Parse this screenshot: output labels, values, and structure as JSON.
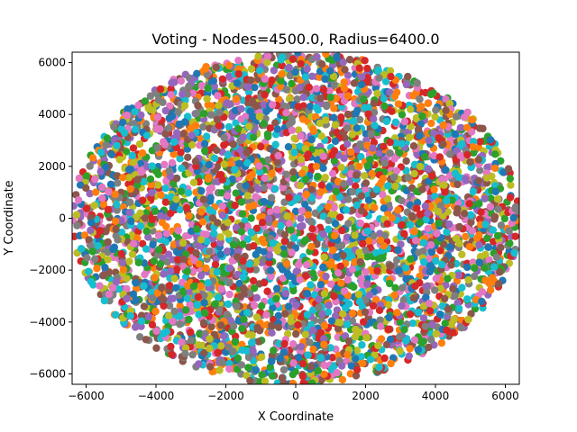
{
  "chart_data": {
    "type": "scatter",
    "title": "Voting - Nodes=4500.0, Radius=6400.0",
    "xlabel": "X Coordinate",
    "ylabel": "Y Coordinate",
    "xlim": [
      -6400,
      6400
    ],
    "ylim": [
      -6400,
      6400
    ],
    "x_ticks": [
      -6000,
      -4000,
      -2000,
      0,
      2000,
      4000,
      6000
    ],
    "y_ticks": [
      -6000,
      -4000,
      -2000,
      0,
      2000,
      4000,
      6000
    ],
    "x_tick_labels": [
      "−6000",
      "−4000",
      "−2000",
      "0",
      "2000",
      "4000",
      "6000"
    ],
    "y_tick_labels": [
      "−6000",
      "−4000",
      "−2000",
      "0",
      "2000",
      "4000",
      "6000"
    ],
    "grid": false,
    "legend": "none",
    "nodes": 4500,
    "radius": 6400,
    "distribution": "uniform random points inside a circle centered at (0,0)",
    "colors": [
      "#1f77b4",
      "#ff7f0e",
      "#2ca02c",
      "#d62728",
      "#9467bd",
      "#8c564b",
      "#e377c2",
      "#7f7f7f",
      "#bcbd22",
      "#17becf"
    ]
  }
}
